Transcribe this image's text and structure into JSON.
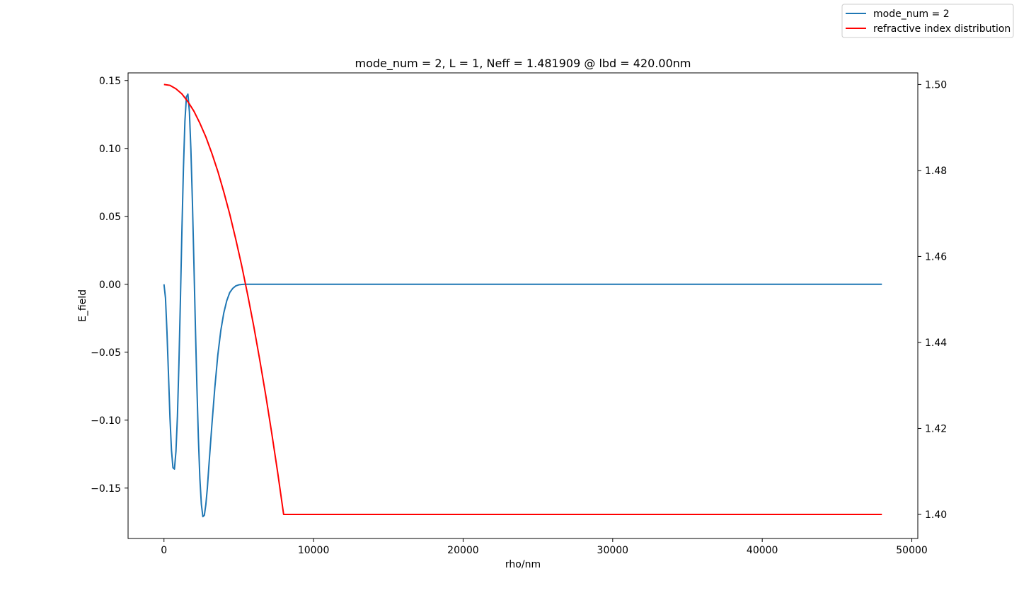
{
  "chart_data": {
    "type": "line",
    "title": "mode_num = 2, L = 1, Neff = 1.481909 @ lbd = 420.00nm",
    "xlabel": "rho/nm",
    "ylabel": "E_field",
    "y2label": "",
    "xlim": [
      -2400,
      50400
    ],
    "ylim": [
      -0.1871,
      0.1556
    ],
    "y2lim": [
      1.3944,
      1.5027
    ],
    "xticks": [
      0,
      10000,
      20000,
      30000,
      40000,
      50000
    ],
    "xtick_labels": [
      "0",
      "10000",
      "20000",
      "30000",
      "40000",
      "50000"
    ],
    "yticks": [
      -0.15,
      -0.1,
      -0.05,
      0.0,
      0.05,
      0.1,
      0.15
    ],
    "ytick_labels": [
      "−0.15",
      "−0.10",
      "−0.05",
      "0.00",
      "0.05",
      "0.10",
      "0.15"
    ],
    "y2ticks": [
      1.4,
      1.42,
      1.44,
      1.46,
      1.48,
      1.5
    ],
    "y2tick_labels": [
      "1.40",
      "1.42",
      "1.44",
      "1.46",
      "1.48",
      "1.50"
    ],
    "grid": false,
    "legend_position": "top-right (figure)",
    "series": [
      {
        "name": "mode_num = 2",
        "color": "#1f77b4",
        "axis": "left",
        "x": [
          0,
          100,
          200,
          300,
          400,
          500,
          600,
          700,
          800,
          900,
          1000,
          1100,
          1200,
          1300,
          1400,
          1500,
          1600,
          1700,
          1800,
          1900,
          2000,
          2100,
          2200,
          2300,
          2400,
          2500,
          2600,
          2700,
          2800,
          2900,
          3000,
          3200,
          3400,
          3600,
          3800,
          4000,
          4200,
          4400,
          4600,
          4800,
          5000,
          5200,
          5400,
          5600,
          5800,
          6000,
          6500,
          7000,
          8000,
          10000,
          20000,
          30000,
          40000,
          48000
        ],
        "y": [
          0.0,
          -0.01,
          -0.035,
          -0.066,
          -0.098,
          -0.122,
          -0.135,
          -0.136,
          -0.123,
          -0.097,
          -0.058,
          -0.011,
          0.04,
          0.085,
          0.12,
          0.138,
          0.14,
          0.127,
          0.099,
          0.061,
          0.016,
          -0.031,
          -0.075,
          -0.113,
          -0.143,
          -0.162,
          -0.171,
          -0.17,
          -0.162,
          -0.15,
          -0.134,
          -0.104,
          -0.076,
          -0.052,
          -0.034,
          -0.021,
          -0.012,
          -0.006,
          -0.003,
          -0.0012,
          -0.0004,
          -0.0001,
          0.0,
          0.0,
          0.0,
          0.0,
          0.0,
          0.0,
          0.0,
          0.0,
          0.0,
          0.0,
          0.0,
          0.0
        ]
      },
      {
        "name": "refractive index distribution",
        "color": "#ff0000",
        "axis": "right",
        "x": [
          0,
          400,
          800,
          1200,
          1600,
          2000,
          2400,
          2800,
          3200,
          3600,
          4000,
          4400,
          4800,
          5200,
          5600,
          6000,
          6400,
          6800,
          7200,
          7600,
          8000,
          10000,
          20000,
          30000,
          40000,
          48000
        ],
        "y": [
          1.5,
          1.4998,
          1.499,
          1.4978,
          1.496,
          1.4938,
          1.491,
          1.4878,
          1.484,
          1.4798,
          1.475,
          1.4698,
          1.464,
          1.4578,
          1.451,
          1.4438,
          1.436,
          1.4278,
          1.419,
          1.4098,
          1.4,
          1.4,
          1.4,
          1.4,
          1.4,
          1.4
        ]
      }
    ]
  }
}
